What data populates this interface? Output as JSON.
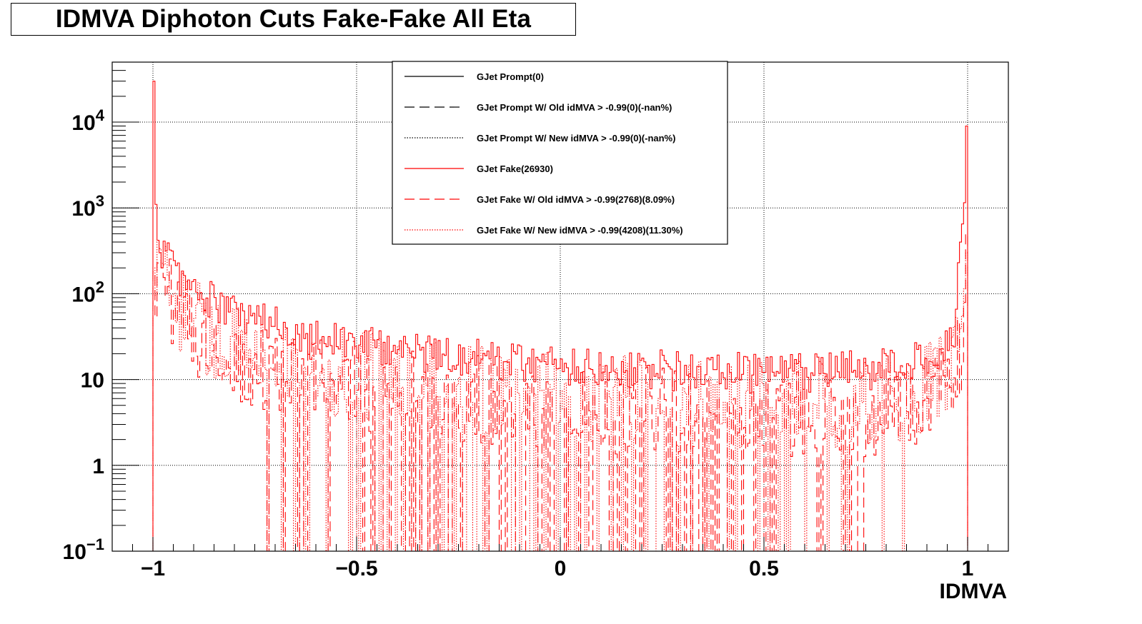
{
  "title": "IDMVA Diphoton Cuts Fake-Fake All Eta",
  "chart_data": {
    "type": "histogram",
    "title": "IDMVA Diphoton Cuts Fake-Fake All Eta",
    "xlabel": "IDMVA",
    "ylabel": "",
    "xlim": [
      -1.1,
      1.1
    ],
    "ylim": [
      0.1,
      50000
    ],
    "y_scale": "log",
    "grid": true,
    "legend_position": "top-center",
    "x_ticks": [
      {
        "value": -1,
        "label": "−1"
      },
      {
        "value": -0.5,
        "label": "−0.5"
      },
      {
        "value": 0,
        "label": "0"
      },
      {
        "value": 0.5,
        "label": "0.5"
      },
      {
        "value": 1,
        "label": "1"
      }
    ],
    "y_ticks": [
      {
        "value": 0.1,
        "base": "10",
        "exp": "−1"
      },
      {
        "value": 1,
        "base": "1",
        "exp": ""
      },
      {
        "value": 10,
        "base": "10",
        "exp": ""
      },
      {
        "value": 100,
        "base": "10",
        "exp": "2"
      },
      {
        "value": 1000,
        "base": "10",
        "exp": "3"
      },
      {
        "value": 10000,
        "base": "10",
        "exp": "4"
      }
    ],
    "series": [
      {
        "name": "GJet Prompt(0)",
        "color": "#000000",
        "line_style": "solid",
        "peak_left": 0,
        "peak_right": 0
      },
      {
        "name": "GJet Prompt W/ Old idMVA > -0.99(0)(-nan%)",
        "color": "#000000",
        "line_style": "dashed",
        "peak_left": 0,
        "peak_right": 0
      },
      {
        "name": "GJet Prompt W/ New idMVA > -0.99(0)(-nan%)",
        "color": "#000000",
        "line_style": "dotted",
        "peak_left": 0,
        "peak_right": 0
      },
      {
        "name": "GJet Fake(26930)",
        "color": "#ff0000",
        "line_style": "solid",
        "peak_left": 30000,
        "peak_right": 9000
      },
      {
        "name": "GJet Fake W/ Old idMVA > -0.99(2768)(8.09%)",
        "color": "#ff0000",
        "line_style": "dashed",
        "peak_left": 180,
        "peak_right": 500
      },
      {
        "name": "GJet Fake W/ New idMVA > -0.99(4208)(11.30%)",
        "color": "#ff0000",
        "line_style": "dotted",
        "peak_left": 200,
        "peak_right": 300
      }
    ]
  }
}
